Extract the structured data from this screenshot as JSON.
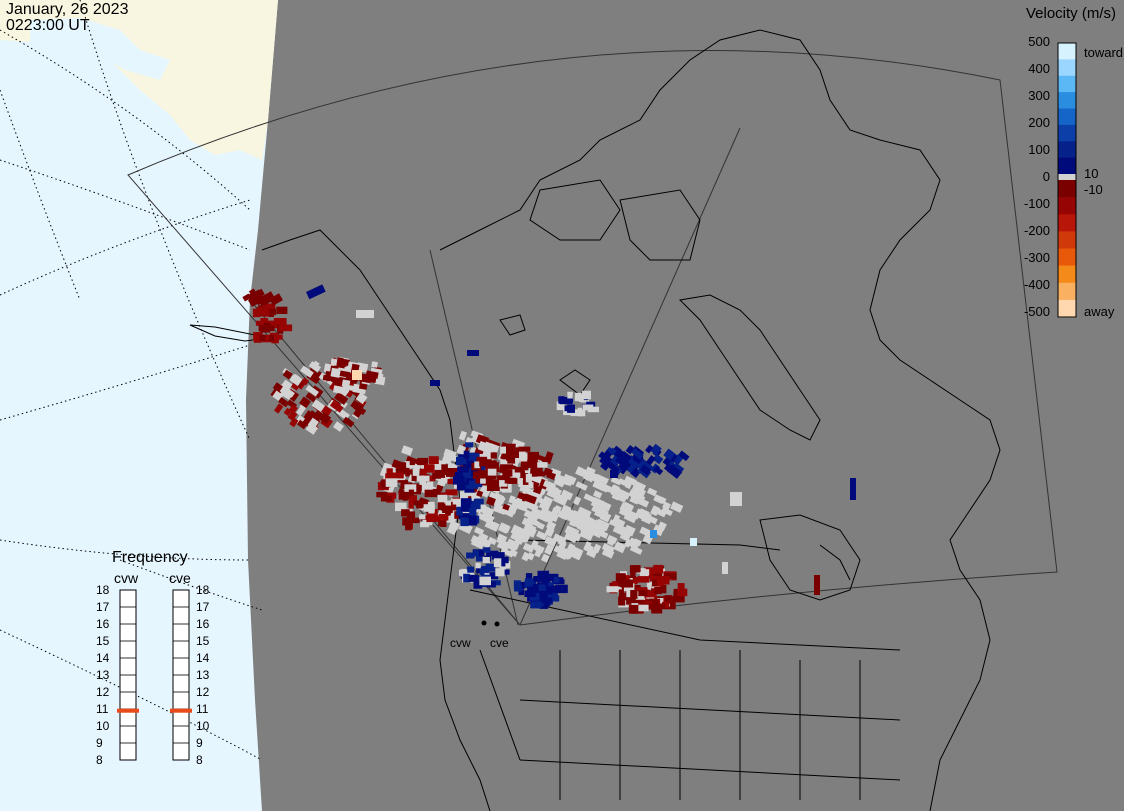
{
  "header": {
    "date": "January, 26 2023",
    "time": "0223:00 UT"
  },
  "velocity_legend": {
    "title": "Velocity (m/s)",
    "ticks": [
      "500",
      "400",
      "300",
      "200",
      "100",
      "0",
      "-100",
      "-200",
      "-300",
      "-400",
      "-500"
    ],
    "fine_ticks": [
      "10",
      "-10"
    ],
    "toward_label": "toward",
    "away_label": "away",
    "colors_toward": [
      "#d6f2ff",
      "#9ad6ff",
      "#5cb8f5",
      "#2a8de0",
      "#1565c8",
      "#0c3fa8",
      "#07218a",
      "#000a7a"
    ],
    "colors_away": [
      "#7a0000",
      "#960404",
      "#b81608",
      "#d03a0a",
      "#e85a0a",
      "#f48a1a",
      "#f9b060",
      "#ffd8b0"
    ],
    "ground_scatter_color": "#d2d2d2"
  },
  "frequency_panel": {
    "title": "Frequency",
    "radars": [
      {
        "name": "cvw",
        "frequency_mhz": 10.9
      },
      {
        "name": "cve",
        "frequency_mhz": 10.9
      }
    ],
    "scale": [
      "18",
      "17",
      "16",
      "15",
      "14",
      "13",
      "12",
      "11",
      "10",
      "9",
      "8"
    ],
    "marker_color": "#e84a1a"
  },
  "sites": [
    {
      "name": "cvw"
    },
    {
      "name": "cve"
    }
  ],
  "map_colors": {
    "land": "#7f7f7f",
    "ocean": "#e6f6ff",
    "night_land": "#f8f6e0",
    "coast": "#000000"
  }
}
